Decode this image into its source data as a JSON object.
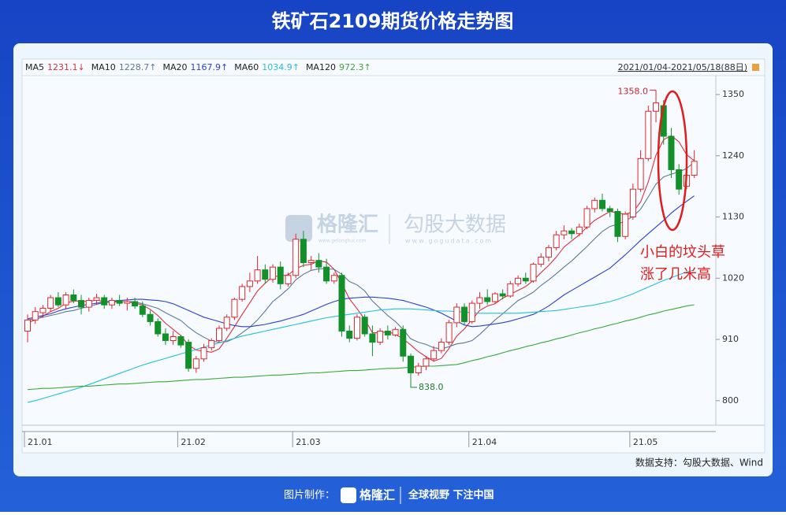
{
  "chart_data": {
    "type": "candlestick",
    "title": "铁矿石2109期货价格走势图",
    "date_range": "2021/01/04-2021/05/18(88日)",
    "categories": [
      "21.01",
      null,
      null,
      null,
      null,
      null,
      null,
      null,
      null,
      null,
      null,
      null,
      null,
      null,
      null,
      null,
      null,
      null,
      null,
      null,
      "21.02",
      null,
      null,
      null,
      null,
      null,
      null,
      null,
      null,
      null,
      null,
      null,
      null,
      null,
      null,
      "21.03",
      null,
      null,
      null,
      null,
      null,
      null,
      null,
      null,
      null,
      null,
      null,
      null,
      null,
      null,
      null,
      null,
      null,
      null,
      null,
      null,
      null,
      null,
      "21.04",
      null,
      null,
      null,
      null,
      null,
      null,
      null,
      null,
      null,
      null,
      null,
      null,
      null,
      null,
      null,
      null,
      null,
      null,
      null,
      null,
      "21.05",
      null,
      null,
      null,
      null,
      null,
      null,
      null,
      null
    ],
    "open": [
      925,
      945,
      958,
      966,
      985,
      972,
      990,
      980,
      968,
      980,
      985,
      972,
      980,
      975,
      978,
      970,
      955,
      942,
      920,
      908,
      915,
      905,
      858,
      875,
      895,
      908,
      930,
      950,
      982,
      1005,
      1015,
      1035,
      1018,
      1040,
      1010,
      1025,
      1090,
      1048,
      1052,
      1040,
      1015,
      1025,
      925,
      912,
      950,
      920,
      905,
      925,
      918,
      928,
      880,
      850,
      862,
      875,
      890,
      905,
      940,
      968,
      942,
      975,
      985,
      978,
      992,
      988,
      1010,
      1020,
      1015,
      1045,
      1058,
      1075,
      1098,
      1105,
      1100,
      1112,
      1145,
      1160,
      1145,
      1140,
      1095,
      1130,
      1180,
      1235,
      1320,
      1330,
      1275,
      1215,
      1185,
      1205
    ],
    "high": [
      955,
      968,
      972,
      990,
      995,
      995,
      1000,
      990,
      985,
      992,
      990,
      985,
      990,
      985,
      985,
      978,
      962,
      948,
      930,
      925,
      918,
      910,
      880,
      902,
      912,
      935,
      955,
      985,
      1010,
      1030,
      1060,
      1045,
      1045,
      1050,
      1030,
      1100,
      1105,
      1060,
      1065,
      1055,
      1030,
      1030,
      935,
      955,
      955,
      935,
      930,
      935,
      932,
      935,
      885,
      868,
      880,
      898,
      912,
      945,
      975,
      975,
      980,
      995,
      1000,
      995,
      1000,
      1015,
      1025,
      1030,
      1048,
      1065,
      1080,
      1105,
      1115,
      1110,
      1118,
      1150,
      1165,
      1172,
      1150,
      1145,
      1140,
      1190,
      1250,
      1330,
      1358,
      1340,
      1290,
      1225,
      1215,
      1250
    ],
    "low": [
      905,
      938,
      950,
      960,
      968,
      965,
      975,
      955,
      960,
      972,
      965,
      965,
      970,
      962,
      965,
      950,
      935,
      915,
      900,
      900,
      895,
      852,
      850,
      870,
      890,
      905,
      925,
      945,
      978,
      995,
      1010,
      1010,
      1012,
      1000,
      1005,
      1020,
      1040,
      1035,
      1030,
      1010,
      1010,
      915,
      905,
      908,
      915,
      880,
      900,
      910,
      915,
      870,
      838,
      845,
      855,
      870,
      885,
      900,
      932,
      935,
      938,
      965,
      972,
      975,
      982,
      985,
      1005,
      1010,
      1012,
      1040,
      1050,
      1070,
      1090,
      1090,
      1095,
      1108,
      1138,
      1140,
      1130,
      1085,
      1090,
      1125,
      1175,
      1230,
      1300,
      1260,
      1200,
      1170,
      1180,
      1200
    ],
    "close": [
      945,
      960,
      966,
      985,
      972,
      990,
      980,
      968,
      980,
      985,
      972,
      980,
      975,
      978,
      970,
      955,
      942,
      920,
      908,
      915,
      900,
      858,
      875,
      895,
      908,
      930,
      950,
      982,
      1005,
      1015,
      1035,
      1018,
      1040,
      1010,
      1025,
      1090,
      1048,
      1052,
      1040,
      1015,
      1025,
      925,
      912,
      950,
      920,
      905,
      925,
      918,
      928,
      880,
      850,
      862,
      875,
      890,
      905,
      940,
      968,
      942,
      975,
      985,
      978,
      992,
      988,
      1010,
      1020,
      1015,
      1045,
      1058,
      1075,
      1098,
      1105,
      1100,
      1112,
      1145,
      1160,
      1145,
      1140,
      1095,
      1135,
      1180,
      1235,
      1320,
      1335,
      1275,
      1215,
      1180,
      1205,
      1230
    ],
    "up_color": "#e0262f",
    "down_color": "#13902a",
    "series": [
      {
        "name": "MA5",
        "color": "#d9313b",
        "legend_value": "1231.1↓",
        "values": [
          940,
          945,
          952,
          960,
          966,
          975,
          979,
          979,
          978,
          981,
          977,
          977,
          978,
          978,
          975,
          972,
          964,
          953,
          939,
          928,
          917,
          900,
          891,
          889,
          887,
          893,
          912,
          933,
          955,
          976,
          997,
          1011,
          1023,
          1024,
          1026,
          1037,
          1043,
          1045,
          1051,
          1049,
          1036,
          1011,
          983,
          965,
          946,
          922,
          922,
          924,
          919,
          911,
          900,
          888,
          879,
          871,
          876,
          894,
          916,
          929,
          946,
          962,
          970,
          974,
          984,
          991,
          998,
          1005,
          1016,
          1030,
          1043,
          1058,
          1076,
          1087,
          1098,
          1112,
          1124,
          1132,
          1140,
          1137,
          1135,
          1139,
          1157,
          1193,
          1241,
          1269,
          1276,
          1265,
          1242,
          1231.1
        ]
      },
      {
        "name": "MA10",
        "color": "#5d7897",
        "legend_value": "1228.7↑",
        "values": [
          945,
          947,
          950,
          953,
          956,
          960,
          962,
          966,
          969,
          973,
          976,
          978,
          978,
          978,
          978,
          974,
          970,
          966,
          958,
          951,
          944,
          932,
          922,
          914,
          907,
          905,
          906,
          912,
          922,
          932,
          945,
          961,
          978,
          989,
          1001,
          1017,
          1027,
          1034,
          1037,
          1037,
          1036,
          1027,
          1014,
          1008,
          997,
          979,
          966,
          953,
          942,
          928,
          911,
          905,
          901,
          895,
          893,
          897,
          902,
          904,
          908,
          919,
          932,
          945,
          956,
          968,
          980,
          987,
          995,
          1007,
          1017,
          1028,
          1040,
          1051,
          1064,
          1077,
          1091,
          1104,
          1113,
          1117,
          1123,
          1131,
          1144,
          1166,
          1189,
          1202,
          1207,
          1211,
          1217,
          1228.7
        ]
      },
      {
        "name": "MA20",
        "color": "#2a3fd0",
        "legend_value": "1167.9↑",
        "values": [
          947,
          950,
          953,
          956,
          961,
          965,
          968,
          971,
          973,
          975,
          977,
          979,
          980,
          981,
          982,
          982,
          981,
          980,
          978,
          974,
          968,
          962,
          956,
          950,
          946,
          942,
          938,
          935,
          933,
          933,
          935,
          937,
          940,
          943,
          947,
          951,
          955,
          961,
          967,
          973,
          978,
          982,
          984,
          985,
          986,
          986,
          985,
          984,
          982,
          980,
          976,
          972,
          968,
          963,
          957,
          950,
          943,
          936,
          933,
          934,
          936,
          938,
          940,
          943,
          947,
          951,
          955,
          962,
          970,
          980,
          990,
          998,
          1006,
          1014,
          1022,
          1030,
          1038,
          1050,
          1062,
          1075,
          1088,
          1100,
          1112,
          1124,
          1137,
          1148,
          1158,
          1167.9
        ]
      },
      {
        "name": "MA60",
        "color": "#26bede",
        "legend_value": "1034.9↑",
        "values": [
          797,
          800,
          804,
          808,
          812,
          816,
          820,
          824,
          829,
          834,
          839,
          844,
          849,
          854,
          859,
          864,
          868,
          872,
          876,
          880,
          884,
          888,
          892,
          896,
          900,
          904,
          908,
          912,
          916,
          919,
          922,
          925,
          928,
          931,
          934,
          937,
          940,
          943,
          946,
          949,
          951,
          953,
          955,
          957,
          959,
          961,
          963,
          964,
          965,
          965,
          965,
          964,
          963,
          962,
          961,
          961,
          960,
          959,
          958,
          957,
          957,
          957,
          957,
          957,
          957,
          958,
          959,
          960,
          961,
          962,
          964,
          966,
          968,
          970,
          972,
          975,
          978,
          982,
          987,
          992,
          998,
          1004,
          1010,
          1016,
          1021,
          1026,
          1031,
          1034.9
        ]
      },
      {
        "name": "MA120",
        "color": "#3aa83a",
        "legend_value": "972.3↑",
        "values": [
          820,
          821,
          822,
          822,
          823,
          824,
          825,
          826,
          826,
          827,
          828,
          829,
          830,
          830,
          831,
          832,
          833,
          834,
          834,
          835,
          836,
          837,
          838,
          838,
          839,
          840,
          841,
          842,
          842,
          843,
          844,
          845,
          846,
          846,
          847,
          848,
          849,
          850,
          850,
          851,
          852,
          853,
          854,
          854,
          855,
          856,
          857,
          858,
          858,
          859,
          860,
          861,
          862,
          862,
          863,
          864,
          865,
          868,
          872,
          875,
          879,
          882,
          886,
          890,
          893,
          897,
          900,
          904,
          907,
          911,
          914,
          918,
          922,
          925,
          929,
          932,
          936,
          939,
          943,
          946,
          950,
          954,
          957,
          961,
          964,
          967,
          970,
          972.3
        ]
      }
    ],
    "ylim": [
      770,
      1384
    ],
    "yticks": [
      800,
      910,
      1020,
      1130,
      1240,
      1350
    ],
    "grid": false,
    "extremes": [
      {
        "value": 1358,
        "label": "1358.0"
      },
      {
        "value": 838,
        "label": "838.0"
      }
    ],
    "annotation": [
      "小白的坟头草",
      "涨了几米高"
    ],
    "watermark": [
      "格隆汇",
      "www.gelonghui.com",
      "勾股大数据",
      "www.gogudata.com"
    ],
    "source": "数据支持：勾股大数据、Wind"
  },
  "footer": {
    "made_by": "图片制作：",
    "brand": "格隆汇",
    "slogan": "全球视野 下注中国"
  }
}
